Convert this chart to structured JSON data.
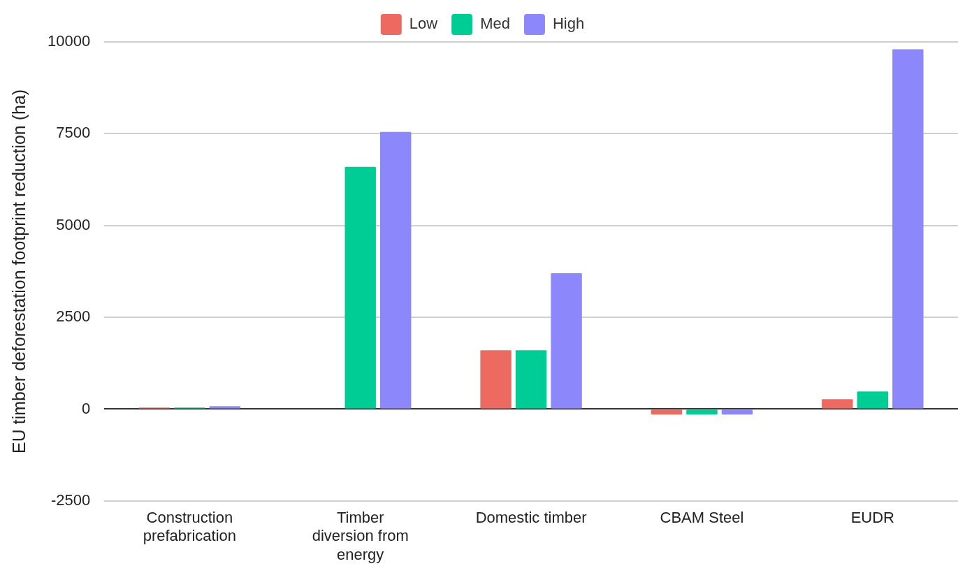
{
  "chart_data": {
    "type": "bar",
    "ylabel": "EU timber deforestation footprint reduction (ha)",
    "categories": [
      "Construction prefabrication",
      "Timber diversion from energy",
      "Domestic timber",
      "CBAM Steel",
      "EUDR"
    ],
    "series": [
      {
        "name": "Low",
        "color": "#ec6a60",
        "values": [
          40,
          0,
          1600,
          -150,
          270
        ]
      },
      {
        "name": "Med",
        "color": "#00cc96",
        "values": [
          40,
          6600,
          1600,
          -150,
          480
        ]
      },
      {
        "name": "High",
        "color": "#8c88fc",
        "values": [
          80,
          7550,
          3700,
          -150,
          9800
        ]
      }
    ],
    "ylim": [
      -2500,
      10000
    ],
    "yticks": [
      -2500,
      0,
      2500,
      5000,
      7500,
      10000
    ],
    "grid": "y",
    "legend": "top"
  }
}
